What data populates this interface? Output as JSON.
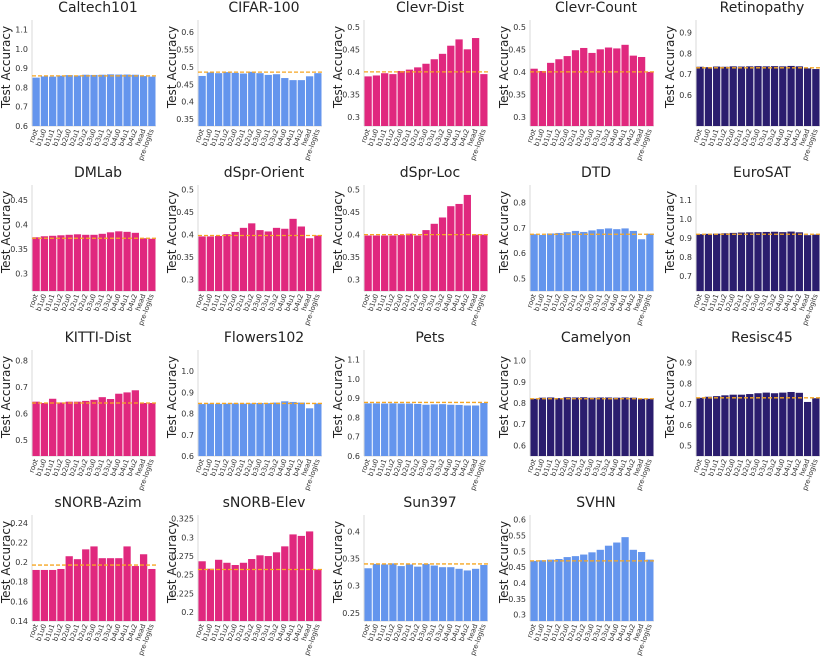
{
  "figure": {
    "ylabel": "Test Accuracy"
  },
  "chart_data": [
    {
      "type": "bar",
      "title": "Caltech101",
      "color": "#6495ED",
      "baseline": 0.86,
      "ylim": [
        0.6,
        1.15
      ],
      "yticks": [
        0.6,
        0.7,
        0.8,
        0.9,
        1.0,
        1.1
      ],
      "categories": [
        "root",
        "b1u0",
        "b1u1",
        "b1u2",
        "b2u0",
        "b2u1",
        "b2u2",
        "b3u0",
        "b3u1",
        "b3u2",
        "b4u0",
        "b4u1",
        "b4u2",
        "head",
        "pre-logits"
      ],
      "values": [
        0.851,
        0.857,
        0.856,
        0.861,
        0.864,
        0.862,
        0.866,
        0.865,
        0.866,
        0.868,
        0.867,
        0.867,
        0.866,
        0.859,
        0.856
      ]
    },
    {
      "type": "bar",
      "title": "CIFAR-100",
      "color": "#6495ED",
      "baseline": 0.485,
      "ylim": [
        0.33,
        0.635
      ],
      "yticks": [
        0.35,
        0.4,
        0.45,
        0.5,
        0.55,
        0.6
      ],
      "categories": [
        "root",
        "b1u0",
        "b1u1",
        "b1u2",
        "b2u0",
        "b2u1",
        "b2u2",
        "b3u0",
        "b3u1",
        "b3u2",
        "b4u0",
        "b4u1",
        "b4u2",
        "head",
        "pre-logits"
      ],
      "values": [
        0.474,
        0.484,
        0.482,
        0.485,
        0.483,
        0.481,
        0.486,
        0.482,
        0.477,
        0.479,
        0.468,
        0.462,
        0.462,
        0.473,
        0.482
      ]
    },
    {
      "type": "bar",
      "title": "Clevr-Dist",
      "color": "#E0287E",
      "baseline": 0.4,
      "ylim": [
        0.28,
        0.515
      ],
      "yticks": [
        0.3,
        0.35,
        0.4,
        0.45,
        0.5
      ],
      "categories": [
        "root",
        "b1u0",
        "b1u1",
        "b1u2",
        "b2u0",
        "b2u1",
        "b2u2",
        "b3u0",
        "b3u1",
        "b3u2",
        "b4u0",
        "b4u1",
        "b4u2",
        "head",
        "pre-logits"
      ],
      "values": [
        0.39,
        0.392,
        0.397,
        0.395,
        0.402,
        0.405,
        0.41,
        0.418,
        0.428,
        0.44,
        0.458,
        0.472,
        0.45,
        0.475,
        0.395
      ]
    },
    {
      "type": "bar",
      "title": "Clevr-Count",
      "color": "#E0287E",
      "baseline": 0.4,
      "ylim": [
        0.28,
        0.515
      ],
      "yticks": [
        0.3,
        0.35,
        0.4,
        0.45,
        0.5
      ],
      "categories": [
        "root",
        "b1u0",
        "b1u1",
        "b1u2",
        "b2u0",
        "b2u1",
        "b2u2",
        "b3u0",
        "b3u1",
        "b3u2",
        "b4u0",
        "b4u1",
        "b4u2",
        "head",
        "pre-logits"
      ],
      "values": [
        0.407,
        0.402,
        0.42,
        0.428,
        0.435,
        0.448,
        0.453,
        0.442,
        0.45,
        0.454,
        0.452,
        0.46,
        0.436,
        0.433,
        0.4
      ]
    },
    {
      "type": "bar",
      "title": "Retinopathy",
      "color": "#2B1D6E",
      "baseline": 0.73,
      "ylim": [
        0.45,
        0.96
      ],
      "yticks": [
        0.6,
        0.7,
        0.8,
        0.9
      ],
      "categories": [
        "root",
        "b1u0",
        "b1u1",
        "b1u2",
        "b2u0",
        "b2u1",
        "b2u2",
        "b3u0",
        "b3u1",
        "b3u2",
        "b4u0",
        "b4u1",
        "b4u2",
        "head",
        "pre-logits"
      ],
      "values": [
        0.735,
        0.733,
        0.736,
        0.735,
        0.737,
        0.736,
        0.737,
        0.738,
        0.737,
        0.738,
        0.737,
        0.739,
        0.737,
        0.727,
        0.724
      ]
    },
    {
      "type": "bar",
      "title": "DMLab",
      "color": "#E0287E",
      "baseline": 0.372,
      "ylim": [
        0.265,
        0.48
      ],
      "yticks": [
        0.3,
        0.35,
        0.4,
        0.45
      ],
      "categories": [
        "root",
        "b1u0",
        "b1u1",
        "b1u2",
        "b2u0",
        "b2u1",
        "b2u2",
        "b3u0",
        "b3u1",
        "b3u2",
        "b4u0",
        "b4u1",
        "b4u2",
        "head",
        "pre-logits"
      ],
      "values": [
        0.374,
        0.376,
        0.377,
        0.378,
        0.379,
        0.38,
        0.379,
        0.379,
        0.381,
        0.384,
        0.386,
        0.385,
        0.383,
        0.372,
        0.371
      ]
    },
    {
      "type": "bar",
      "title": "dSpr-Orient",
      "color": "#E0287E",
      "baseline": 0.398,
      "ylim": [
        0.275,
        0.51
      ],
      "yticks": [
        0.3,
        0.35,
        0.4,
        0.45,
        0.5
      ],
      "categories": [
        "root",
        "b1u0",
        "b1u1",
        "b1u2",
        "b2u0",
        "b2u1",
        "b2u2",
        "b3u0",
        "b3u1",
        "b3u2",
        "b4u0",
        "b4u1",
        "b4u2",
        "head",
        "pre-logits"
      ],
      "values": [
        0.396,
        0.396,
        0.397,
        0.401,
        0.406,
        0.415,
        0.425,
        0.41,
        0.407,
        0.415,
        0.413,
        0.435,
        0.418,
        0.392,
        0.398
      ]
    },
    {
      "type": "bar",
      "title": "dSpr-Loc",
      "color": "#E0287E",
      "baseline": 0.4,
      "ylim": [
        0.275,
        0.51
      ],
      "yticks": [
        0.3,
        0.35,
        0.4,
        0.45,
        0.5
      ],
      "categories": [
        "root",
        "b1u0",
        "b1u1",
        "b1u2",
        "b2u0",
        "b2u1",
        "b2u2",
        "b3u0",
        "b3u1",
        "b3u2",
        "b4u0",
        "b4u1",
        "b4u2",
        "head",
        "pre-logits"
      ],
      "values": [
        0.398,
        0.398,
        0.398,
        0.398,
        0.399,
        0.402,
        0.398,
        0.41,
        0.424,
        0.438,
        0.463,
        0.468,
        0.488,
        0.4,
        0.4
      ]
    },
    {
      "type": "bar",
      "title": "DTD",
      "color": "#6495ED",
      "baseline": 0.675,
      "ylim": [
        0.45,
        0.87
      ],
      "yticks": [
        0.5,
        0.6,
        0.7,
        0.8
      ],
      "categories": [
        "root",
        "b1u0",
        "b1u1",
        "b1u2",
        "b2u0",
        "b2u1",
        "b2u2",
        "b3u0",
        "b3u1",
        "b3u2",
        "b4u0",
        "b4u1",
        "b4u2",
        "head",
        "pre-logits"
      ],
      "values": [
        0.675,
        0.672,
        0.678,
        0.68,
        0.683,
        0.688,
        0.684,
        0.69,
        0.695,
        0.698,
        0.695,
        0.698,
        0.688,
        0.655,
        0.677
      ]
    },
    {
      "type": "bar",
      "title": "EuroSAT",
      "color": "#2B1D6E",
      "baseline": 0.92,
      "ylim": [
        0.62,
        1.18
      ],
      "yticks": [
        0.7,
        0.8,
        0.9,
        1.0,
        1.1
      ],
      "categories": [
        "root",
        "b1u0",
        "b1u1",
        "b1u2",
        "b2u0",
        "b2u1",
        "b2u2",
        "b3u0",
        "b3u1",
        "b3u2",
        "b4u0",
        "b4u1",
        "b4u2",
        "head",
        "pre-logits"
      ],
      "values": [
        0.92,
        0.922,
        0.923,
        0.925,
        0.927,
        0.929,
        0.93,
        0.931,
        0.932,
        0.933,
        0.931,
        0.934,
        0.93,
        0.915,
        0.918
      ]
    },
    {
      "type": "bar",
      "title": "KITTI-Dist",
      "color": "#E0287E",
      "baseline": 0.64,
      "ylim": [
        0.44,
        0.84
      ],
      "yticks": [
        0.5,
        0.6,
        0.7,
        0.8
      ],
      "categories": [
        "root",
        "b1u0",
        "b1u1",
        "b1u2",
        "b2u0",
        "b2u1",
        "b2u2",
        "b3u0",
        "b3u1",
        "b3u2",
        "b4u0",
        "b4u1",
        "b4u2",
        "head",
        "pre-logits"
      ],
      "values": [
        0.645,
        0.64,
        0.656,
        0.642,
        0.645,
        0.645,
        0.648,
        0.652,
        0.662,
        0.655,
        0.675,
        0.68,
        0.688,
        0.64,
        0.64
      ]
    },
    {
      "type": "bar",
      "title": "Flowers102",
      "color": "#6495ED",
      "baseline": 0.848,
      "ylim": [
        0.6,
        1.1
      ],
      "yticks": [
        0.6,
        0.7,
        0.8,
        0.9,
        1.0
      ],
      "categories": [
        "root",
        "b1u0",
        "b1u1",
        "b1u2",
        "b2u0",
        "b2u1",
        "b2u2",
        "b3u0",
        "b3u1",
        "b3u2",
        "b4u0",
        "b4u1",
        "b4u2",
        "head",
        "pre-logits"
      ],
      "values": [
        0.845,
        0.847,
        0.846,
        0.847,
        0.848,
        0.847,
        0.848,
        0.85,
        0.849,
        0.852,
        0.858,
        0.855,
        0.852,
        0.825,
        0.848
      ]
    },
    {
      "type": "bar",
      "title": "Pets",
      "color": "#6495ED",
      "baseline": 0.878,
      "ylim": [
        0.6,
        1.15
      ],
      "yticks": [
        0.6,
        0.7,
        0.8,
        0.9,
        1.0,
        1.1
      ],
      "categories": [
        "root",
        "b1u0",
        "b1u1",
        "b1u2",
        "b2u0",
        "b2u1",
        "b2u2",
        "b3u0",
        "b3u1",
        "b3u2",
        "b4u0",
        "b4u1",
        "b4u2",
        "head",
        "pre-logits"
      ],
      "values": [
        0.873,
        0.873,
        0.872,
        0.873,
        0.872,
        0.872,
        0.87,
        0.866,
        0.868,
        0.869,
        0.866,
        0.865,
        0.862,
        0.862,
        0.875
      ]
    },
    {
      "type": "bar",
      "title": "Camelyon",
      "color": "#2B1D6E",
      "baseline": 0.82,
      "ylim": [
        0.55,
        1.05
      ],
      "yticks": [
        0.6,
        0.7,
        0.8,
        0.9,
        1.0
      ],
      "categories": [
        "root",
        "b1u0",
        "b1u1",
        "b1u2",
        "b2u0",
        "b2u1",
        "b2u2",
        "b3u0",
        "b3u1",
        "b3u2",
        "b4u0",
        "b4u1",
        "b4u2",
        "head",
        "pre-logits"
      ],
      "values": [
        0.82,
        0.825,
        0.826,
        0.823,
        0.827,
        0.826,
        0.827,
        0.825,
        0.826,
        0.826,
        0.825,
        0.826,
        0.825,
        0.82,
        0.82
      ]
    },
    {
      "type": "bar",
      "title": "Resisc45",
      "color": "#2B1D6E",
      "baseline": 0.73,
      "ylim": [
        0.45,
        0.96
      ],
      "yticks": [
        0.5,
        0.6,
        0.7,
        0.8,
        0.9
      ],
      "categories": [
        "root",
        "b1u0",
        "b1u1",
        "b1u2",
        "b2u0",
        "b2u1",
        "b2u2",
        "b3u0",
        "b3u1",
        "b3u2",
        "b4u0",
        "b4u1",
        "b4u2",
        "head",
        "pre-logits"
      ],
      "values": [
        0.73,
        0.735,
        0.738,
        0.742,
        0.745,
        0.745,
        0.748,
        0.752,
        0.755,
        0.752,
        0.755,
        0.758,
        0.754,
        0.71,
        0.728
      ]
    },
    {
      "type": "bar",
      "title": "sNORB-Azim",
      "color": "#E0287E",
      "baseline": 0.197,
      "ylim": [
        0.14,
        0.248
      ],
      "yticks": [
        0.14,
        0.16,
        0.18,
        0.2,
        0.22,
        0.24
      ],
      "categories": [
        "root",
        "b1u0",
        "b1u1",
        "b1u2",
        "b2u0",
        "b2u1",
        "b2u2",
        "b3u0",
        "b3u1",
        "b3u2",
        "b4u0",
        "b4u1",
        "b4u2",
        "head",
        "pre-logits"
      ],
      "values": [
        0.192,
        0.192,
        0.192,
        0.193,
        0.206,
        0.203,
        0.213,
        0.216,
        0.204,
        0.204,
        0.204,
        0.216,
        0.196,
        0.208,
        0.193
      ]
    },
    {
      "type": "bar",
      "title": "sNORB-Elev",
      "color": "#E0287E",
      "baseline": 0.257,
      "ylim": [
        0.188,
        0.33
      ],
      "yticks": [
        0.2,
        0.225,
        0.25,
        0.275,
        0.3,
        0.325
      ],
      "categories": [
        "root",
        "b1u0",
        "b1u1",
        "b1u2",
        "b2u0",
        "b2u1",
        "b2u2",
        "b3u0",
        "b3u1",
        "b3u2",
        "b4u0",
        "b4u1",
        "b4u2",
        "head",
        "pre-logits"
      ],
      "values": [
        0.268,
        0.258,
        0.27,
        0.266,
        0.263,
        0.266,
        0.271,
        0.276,
        0.275,
        0.28,
        0.288,
        0.304,
        0.302,
        0.308,
        0.257
      ]
    },
    {
      "type": "bar",
      "title": "Sun397",
      "color": "#6495ED",
      "baseline": 0.34,
      "ylim": [
        0.235,
        0.43
      ],
      "yticks": [
        0.25,
        0.3,
        0.35,
        0.4
      ],
      "categories": [
        "root",
        "b1u0",
        "b1u1",
        "b1u2",
        "b2u0",
        "b2u1",
        "b2u2",
        "b3u0",
        "b3u1",
        "b3u2",
        "b4u0",
        "b4u1",
        "b4u2",
        "head",
        "pre-logits"
      ],
      "values": [
        0.332,
        0.34,
        0.339,
        0.341,
        0.336,
        0.339,
        0.335,
        0.34,
        0.337,
        0.334,
        0.334,
        0.331,
        0.328,
        0.331,
        0.338
      ]
    },
    {
      "type": "bar",
      "title": "SVHN",
      "color": "#6495ED",
      "baseline": 0.47,
      "ylim": [
        0.28,
        0.615
      ],
      "yticks": [
        0.3,
        0.35,
        0.4,
        0.45,
        0.5,
        0.55,
        0.6
      ],
      "categories": [
        "root",
        "b1u0",
        "b1u1",
        "b1u2",
        "b2u0",
        "b2u1",
        "b2u2",
        "b3u0",
        "b3u1",
        "b3u2",
        "b4u0",
        "b4u1",
        "b4u2",
        "head",
        "pre-logits"
      ],
      "values": [
        0.47,
        0.472,
        0.474,
        0.476,
        0.482,
        0.485,
        0.49,
        0.497,
        0.505,
        0.518,
        0.528,
        0.545,
        0.505,
        0.498,
        0.474
      ]
    }
  ]
}
